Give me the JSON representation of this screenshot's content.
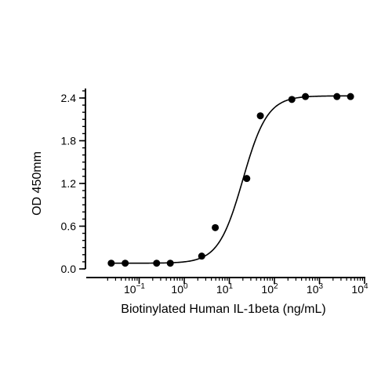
{
  "chart_data": {
    "type": "scatter",
    "xlabel": "Biotinylated Human IL-1beta (ng/mL)",
    "ylabel": "OD 450mm",
    "x_scale": "log10",
    "xlim": [
      0.01,
      10000
    ],
    "ylim": [
      0.0,
      2.5
    ],
    "x_ticks": [
      {
        "value": 0.1,
        "base": "10",
        "exp": "−1"
      },
      {
        "value": 1,
        "base": "10",
        "exp": "0"
      },
      {
        "value": 10,
        "base": "10",
        "exp": "1"
      },
      {
        "value": 100,
        "base": "10",
        "exp": "2"
      },
      {
        "value": 1000,
        "base": "10",
        "exp": "3"
      },
      {
        "value": 10000,
        "base": "10",
        "exp": "4"
      }
    ],
    "y_ticks": [
      {
        "value": 0.0,
        "label": "0.0"
      },
      {
        "value": 0.6,
        "label": "0.6"
      },
      {
        "value": 1.2,
        "label": "1.2"
      },
      {
        "value": 1.8,
        "label": "1.8"
      },
      {
        "value": 2.4,
        "label": "2.4"
      }
    ],
    "points": [
      {
        "x": 0.024,
        "y": 0.08
      },
      {
        "x": 0.049,
        "y": 0.08
      },
      {
        "x": 0.244,
        "y": 0.08
      },
      {
        "x": 0.49,
        "y": 0.08
      },
      {
        "x": 2.44,
        "y": 0.18
      },
      {
        "x": 4.88,
        "y": 0.58
      },
      {
        "x": 24.4,
        "y": 1.27
      },
      {
        "x": 48.8,
        "y": 2.15
      },
      {
        "x": 244,
        "y": 2.38
      },
      {
        "x": 488,
        "y": 2.42
      },
      {
        "x": 2440,
        "y": 2.42
      },
      {
        "x": 4880,
        "y": 2.42
      }
    ],
    "fit_curve": {
      "type": "4PL",
      "bottom": 0.08,
      "top": 2.43,
      "ec50": 20,
      "hill": 1.6
    },
    "grid": false,
    "legend": "none"
  }
}
